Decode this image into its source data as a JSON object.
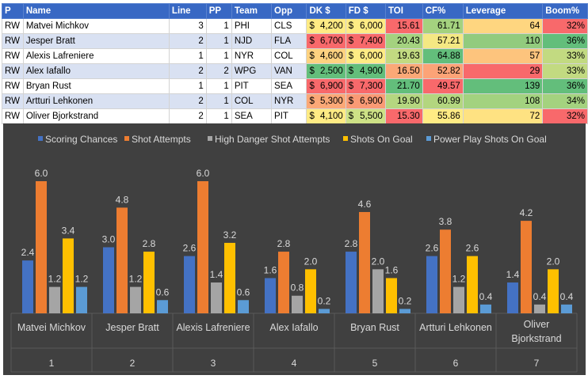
{
  "table": {
    "headers": [
      "P",
      "Name",
      "Line",
      "PP",
      "Team",
      "Opp",
      "DK $",
      "FD $",
      "TOI",
      "CF%",
      "Leverage",
      "Boom%"
    ],
    "rows": [
      {
        "pos": "RW",
        "name": "Matvei Michkov",
        "line": "3",
        "pp": "1",
        "team": "PHI",
        "opp": "CLS",
        "dk": "4,200",
        "fd": "6,000",
        "toi": "15.61",
        "cf": "61.71",
        "lev": "64",
        "boom": "32%"
      },
      {
        "pos": "RW",
        "name": "Jesper Bratt",
        "line": "2",
        "pp": "1",
        "team": "NJD",
        "opp": "FLA",
        "dk": "6,700",
        "fd": "7,400",
        "toi": "20.43",
        "cf": "57.21",
        "lev": "110",
        "boom": "36%"
      },
      {
        "pos": "RW",
        "name": "Alexis Lafreniere",
        "line": "1",
        "pp": "1",
        "team": "NYR",
        "opp": "COL",
        "dk": "4,600",
        "fd": "6,000",
        "toi": "19.63",
        "cf": "64.88",
        "lev": "57",
        "boom": "33%"
      },
      {
        "pos": "RW",
        "name": "Alex Iafallo",
        "line": "2",
        "pp": "2",
        "team": "WPG",
        "opp": "VAN",
        "dk": "2,500",
        "fd": "4,900",
        "toi": "16.50",
        "cf": "52.82",
        "lev": "29",
        "boom": "33%"
      },
      {
        "pos": "RW",
        "name": "Bryan Rust",
        "line": "1",
        "pp": "1",
        "team": "PIT",
        "opp": "SEA",
        "dk": "6,900",
        "fd": "7,300",
        "toi": "21.70",
        "cf": "49.57",
        "lev": "139",
        "boom": "36%"
      },
      {
        "pos": "RW",
        "name": "Artturi Lehkonen",
        "line": "2",
        "pp": "1",
        "team": "COL",
        "opp": "NYR",
        "dk": "5,300",
        "fd": "6,900",
        "toi": "19.90",
        "cf": "60.99",
        "lev": "108",
        "boom": "34%"
      },
      {
        "pos": "RW",
        "name": "Oliver Bjorkstrand",
        "line": "2",
        "pp": "1",
        "team": "SEA",
        "opp": "PIT",
        "dk": "4,100",
        "fd": "5,500",
        "toi": "15.30",
        "cf": "55.86",
        "lev": "72",
        "boom": "32%"
      }
    ],
    "currency_symbol": "$",
    "colors": {
      "dk": [
        "#ffeb84",
        "#f8696b",
        "#fed280",
        "#63be7b",
        "#f8696b",
        "#fba877",
        "#ffeb84"
      ],
      "fd": [
        "#ffeb84",
        "#f8696b",
        "#ffeb84",
        "#63be7b",
        "#f8696b",
        "#fa9a75",
        "#cde186"
      ],
      "toi": [
        "#f8696b",
        "#a4d27f",
        "#c2da81",
        "#fba877",
        "#63be7b",
        "#b5d680",
        "#f8696b"
      ],
      "cf": [
        "#a4d27f",
        "#f4e883",
        "#63be7b",
        "#fca377",
        "#f8696b",
        "#b3d67f",
        "#ffeb84"
      ],
      "lev": [
        "#fed680",
        "#92cb7e",
        "#fdc47d",
        "#f8696b",
        "#63be7b",
        "#a3d27f",
        "#fee282"
      ],
      "boom": [
        "#f8696b",
        "#63be7b",
        "#c2da81",
        "#c2da81",
        "#63be7b",
        "#a4d27f",
        "#f8696b"
      ]
    }
  },
  "chart_data": {
    "type": "bar",
    "series": [
      {
        "name": "Scoring Chances",
        "color": "#4472c4",
        "values": [
          2.4,
          3.0,
          2.6,
          1.6,
          2.8,
          2.6,
          1.4
        ]
      },
      {
        "name": "Shot Attempts",
        "color": "#ed7d31",
        "values": [
          6.0,
          4.8,
          6.0,
          2.8,
          4.6,
          3.8,
          4.2
        ]
      },
      {
        "name": "High Danger Shot Attempts",
        "color": "#a5a5a5",
        "values": [
          1.2,
          1.2,
          1.4,
          0.8,
          2.0,
          1.2,
          0.4
        ]
      },
      {
        "name": "Shots On Goal",
        "color": "#ffc000",
        "values": [
          3.4,
          2.8,
          3.2,
          2.0,
          1.6,
          2.6,
          2.0
        ]
      },
      {
        "name": "Power Play Shots On Goal",
        "color": "#5b9bd5",
        "values": [
          1.2,
          0.6,
          0.6,
          0.2,
          0.2,
          0.4,
          0.4
        ]
      }
    ],
    "categories": [
      {
        "name": [
          "Matvei Michkov"
        ],
        "index": "1"
      },
      {
        "name": [
          "Jesper Bratt"
        ],
        "index": "2"
      },
      {
        "name": [
          "Alexis Lafreniere"
        ],
        "index": "3"
      },
      {
        "name": [
          "Alex Iafallo"
        ],
        "index": "4"
      },
      {
        "name": [
          "Bryan Rust"
        ],
        "index": "5"
      },
      {
        "name": [
          "Artturi Lehkonen"
        ],
        "index": "6"
      },
      {
        "name": [
          "Oliver",
          "Bjorkstrand"
        ],
        "index": "7"
      }
    ],
    "value_labels": [
      [
        "2.4",
        "6.0",
        "1.2",
        "3.4",
        "1.2"
      ],
      [
        "3.0",
        "4.8",
        "1.2",
        "2.8",
        "0.6"
      ],
      [
        "2.6",
        "6.0",
        "1.4",
        "3.2",
        "0.6"
      ],
      [
        "1.6",
        "2.8",
        "0.8",
        "2.0",
        "0.2"
      ],
      [
        "2.8",
        "4.6",
        "2.0",
        "1.6",
        "0.2"
      ],
      [
        "2.6",
        "3.8",
        "1.2",
        "2.6",
        "0.4"
      ],
      [
        "1.4",
        "4.2",
        "0.4",
        "2.0",
        "0.4"
      ]
    ],
    "ylim": [
      0,
      6.6
    ],
    "legend_position": "top",
    "colors": {
      "background": "#404040",
      "text": "#d9d9d9",
      "gridline": "#595959"
    }
  }
}
